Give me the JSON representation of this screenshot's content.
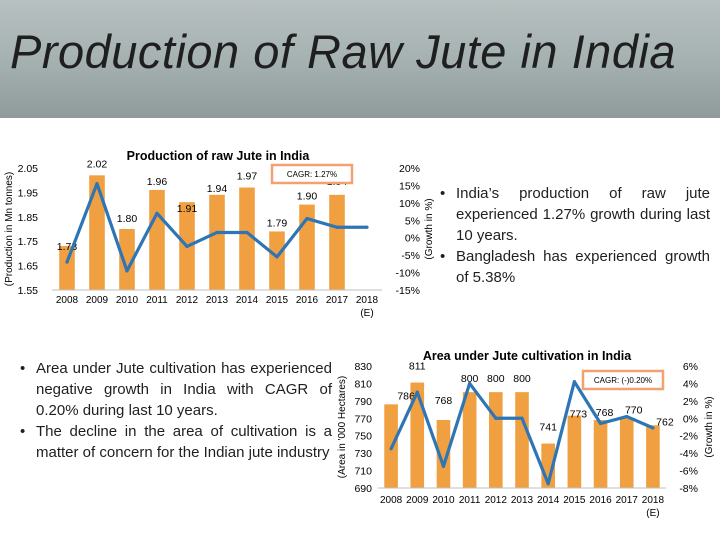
{
  "slide": {
    "title": "Production of  Raw Jute in India",
    "right_bullets": [
      "India’s production of raw jute experienced 1.27% growth during last 10 years.",
      "Bangladesh has experienced growth of 5.38%"
    ],
    "left_bullets": [
      "Area under Jute cultivation has experienced negative growth in India with CAGR of 0.20% during last 10 years.",
      "The decline in the area of cultivation is a matter of concern for the Indian jute industry"
    ]
  },
  "colors": {
    "bar": "#f0a040",
    "line": "#2e75b6",
    "cagr_box": "#f4a070"
  },
  "chart_data": [
    {
      "type": "bar",
      "title": "Production of raw Jute in India",
      "categories": [
        "2008",
        "2009",
        "2010",
        "2011",
        "2012",
        "2013",
        "2014",
        "2015",
        "2016",
        "2017",
        "2018 (E)"
      ],
      "series": [
        {
          "values": [
            1.73,
            2.02,
            1.8,
            1.96,
            1.91,
            1.94,
            1.97,
            1.79,
            1.9,
            1.94,
            null
          ],
          "value_labels": [
            "1.73",
            "2.02",
            "1.80",
            "1.96",
            "1.91",
            "1.94",
            "1.97",
            "1.79",
            "1.90",
            "1.94",
            ""
          ]
        },
        {
          "type": "line",
          "axis": "right",
          "values": [
            -7,
            15.5,
            -9.5,
            7,
            -2.5,
            1.5,
            1.5,
            -5.5,
            5.5,
            3,
            3
          ]
        }
      ],
      "ylabel": "(Production in Mn tonnes)",
      "y2label": "(Growth in %)",
      "ylim": [
        1.55,
        2.05
      ],
      "yticks": [
        "2.05",
        "1.95",
        "1.85",
        "1.75",
        "1.65",
        "1.55"
      ],
      "y2lim": [
        -15,
        20
      ],
      "y2ticks": [
        "20%",
        "15%",
        "10%",
        "5%",
        "0%",
        "-5%",
        "-10%",
        "-15%"
      ],
      "annotation": "CAGR: 1.27%",
      "grid": false
    },
    {
      "type": "bar",
      "title": "Area under Jute cultivation in India",
      "categories": [
        "2008",
        "2009",
        "2010",
        "2011",
        "2012",
        "2013",
        "2014",
        "2015",
        "2016",
        "2017",
        "2018 (E)"
      ],
      "series": [
        {
          "values": [
            786,
            811,
            768,
            800,
            800,
            800,
            741,
            773,
            768,
            770,
            762
          ],
          "value_labels": [
            "786",
            "811",
            "768",
            "800",
            "800",
            "800",
            "741",
            "773",
            "768",
            "770",
            "762"
          ]
        },
        {
          "type": "line",
          "axis": "right",
          "values": [
            -3.5,
            3,
            -5.5,
            4,
            0,
            0,
            -7.5,
            4.2,
            -0.6,
            0.2,
            -1.1
          ]
        }
      ],
      "ylabel": "(Area in '000 Hectares)",
      "y2label": "(Growth in %)",
      "ylim": [
        690,
        830
      ],
      "yticks": [
        "830",
        "810",
        "790",
        "770",
        "750",
        "730",
        "710",
        "690"
      ],
      "y2lim": [
        -8,
        6
      ],
      "y2ticks": [
        "6%",
        "4%",
        "2%",
        "0%",
        "-2%",
        "-4%",
        "-6%",
        "-8%"
      ],
      "annotation": "CAGR: (-)0.20%",
      "grid": false
    }
  ]
}
